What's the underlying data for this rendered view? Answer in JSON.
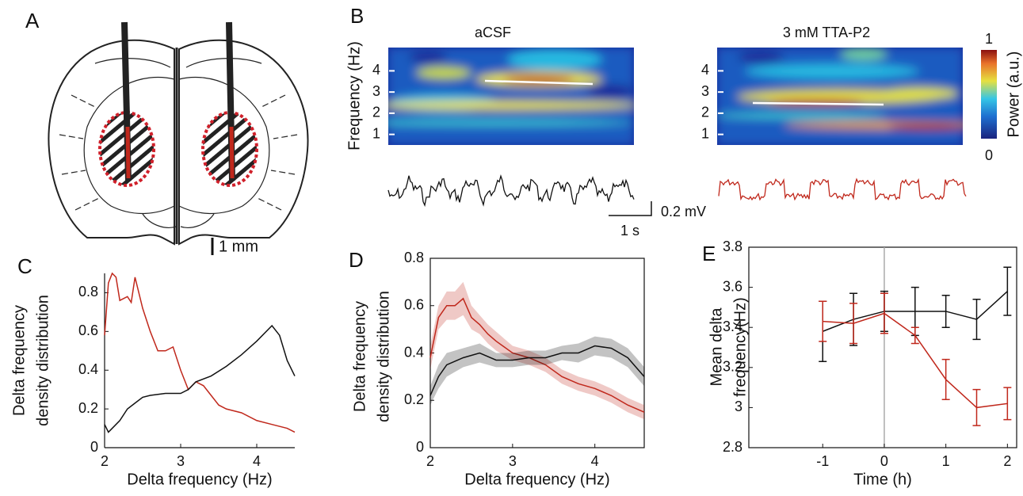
{
  "panel_labels": [
    "A",
    "B",
    "C",
    "D",
    "E"
  ],
  "panel_a": {
    "scale_label": "1 mm"
  },
  "panel_b": {
    "ylabel": "Frequency (Hz)",
    "ylim": [
      0.5,
      5.1
    ],
    "yticks": [
      1,
      2,
      3,
      4
    ],
    "spectrograms": [
      {
        "title": "aCSF"
      },
      {
        "title": "3 mM TTA-P2"
      }
    ],
    "colorbar": {
      "label": "Power (a.u.)",
      "ticks": [
        0,
        1
      ]
    },
    "scale_bar": {
      "voltage": "0.2 mV",
      "time": "1 s"
    }
  },
  "chart_data": [
    {
      "type": "line",
      "xlabel": "Delta frequency (Hz)",
      "ylabel": [
        "Delta frequency",
        "density distribution"
      ],
      "xlim": [
        2,
        4.5
      ],
      "ylim": [
        0,
        0.9
      ],
      "xticks": [
        2,
        3,
        4
      ],
      "yticks": [
        0,
        0.2,
        0.4,
        0.6,
        0.8
      ],
      "box": false,
      "series": [
        {
          "color": "#c0281c",
          "x": [
            2,
            2.05,
            2.1,
            2.15,
            2.2,
            2.3,
            2.35,
            2.4,
            2.5,
            2.6,
            2.7,
            2.8,
            2.9,
            3.0,
            3.1,
            3.2,
            3.3,
            3.4,
            3.5,
            3.6,
            3.8,
            4.0,
            4.2,
            4.4,
            4.5
          ],
          "values": [
            0.58,
            0.85,
            0.9,
            0.88,
            0.76,
            0.78,
            0.75,
            0.88,
            0.72,
            0.6,
            0.5,
            0.5,
            0.52,
            0.4,
            0.3,
            0.34,
            0.32,
            0.27,
            0.22,
            0.2,
            0.18,
            0.14,
            0.12,
            0.1,
            0.08
          ]
        },
        {
          "color": "#111111",
          "x": [
            2,
            2.05,
            2.1,
            2.2,
            2.3,
            2.4,
            2.5,
            2.6,
            2.8,
            3.0,
            3.1,
            3.2,
            3.4,
            3.6,
            3.8,
            4.0,
            4.2,
            4.3,
            4.4,
            4.5
          ],
          "values": [
            0.12,
            0.08,
            0.1,
            0.14,
            0.2,
            0.23,
            0.26,
            0.27,
            0.28,
            0.28,
            0.3,
            0.34,
            0.37,
            0.42,
            0.48,
            0.55,
            0.63,
            0.58,
            0.45,
            0.37
          ]
        }
      ]
    },
    {
      "type": "band",
      "xlabel": "Delta frequency (Hz)",
      "ylabel": [
        "Delta frequency",
        "density distribution"
      ],
      "xlim": [
        2,
        4.6
      ],
      "ylim": [
        0,
        0.8
      ],
      "xticks": [
        2,
        3,
        4
      ],
      "yticks": [
        0,
        0.2,
        0.4,
        0.6,
        0.8
      ],
      "box": true,
      "series": [
        {
          "color": "#c0281c",
          "x": [
            2,
            2.1,
            2.2,
            2.3,
            2.4,
            2.5,
            2.6,
            2.7,
            2.8,
            3.0,
            3.2,
            3.4,
            3.6,
            3.8,
            4.0,
            4.2,
            4.4,
            4.6
          ],
          "values": [
            0.38,
            0.55,
            0.6,
            0.6,
            0.63,
            0.55,
            0.52,
            0.48,
            0.45,
            0.4,
            0.38,
            0.35,
            0.3,
            0.27,
            0.25,
            0.22,
            0.18,
            0.15
          ],
          "errors": [
            0.05,
            0.05,
            0.06,
            0.06,
            0.07,
            0.05,
            0.04,
            0.04,
            0.04,
            0.03,
            0.03,
            0.03,
            0.03,
            0.03,
            0.03,
            0.03,
            0.03,
            0.03
          ]
        },
        {
          "color": "#111111",
          "x": [
            2,
            2.1,
            2.2,
            2.4,
            2.6,
            2.8,
            3.0,
            3.2,
            3.4,
            3.6,
            3.8,
            4.0,
            4.2,
            4.4,
            4.6
          ],
          "values": [
            0.22,
            0.3,
            0.35,
            0.38,
            0.4,
            0.37,
            0.37,
            0.38,
            0.38,
            0.4,
            0.4,
            0.43,
            0.42,
            0.38,
            0.3
          ],
          "errors": [
            0.04,
            0.05,
            0.05,
            0.04,
            0.04,
            0.03,
            0.03,
            0.03,
            0.03,
            0.03,
            0.04,
            0.04,
            0.04,
            0.04,
            0.04
          ]
        }
      ]
    },
    {
      "type": "errorbar",
      "xlabel": "Time (h)",
      "ylabel": [
        "Mean delta",
        "frequency(Hz)"
      ],
      "xlim": [
        -2.2,
        2.15
      ],
      "ylim": [
        2.8,
        3.8
      ],
      "xticks": [
        -1,
        0,
        1,
        2
      ],
      "yticks": [
        2.8,
        3,
        3.2,
        3.4,
        3.6,
        3.8
      ],
      "box": true,
      "vline": 0,
      "series": [
        {
          "color": "#111111",
          "x": [
            -1,
            -0.5,
            0,
            0.5,
            1,
            1.5,
            2
          ],
          "values": [
            3.38,
            3.44,
            3.48,
            3.48,
            3.48,
            3.44,
            3.58
          ],
          "errors": [
            0.15,
            0.13,
            0.1,
            0.12,
            0.08,
            0.1,
            0.12
          ]
        },
        {
          "color": "#c0281c",
          "x": [
            -1,
            -0.5,
            0,
            0.5,
            1,
            1.5,
            2
          ],
          "values": [
            3.43,
            3.42,
            3.47,
            3.36,
            3.14,
            3.0,
            3.02
          ],
          "errors": [
            0.1,
            0.1,
            0.1,
            0.04,
            0.1,
            0.09,
            0.08
          ]
        }
      ]
    }
  ]
}
